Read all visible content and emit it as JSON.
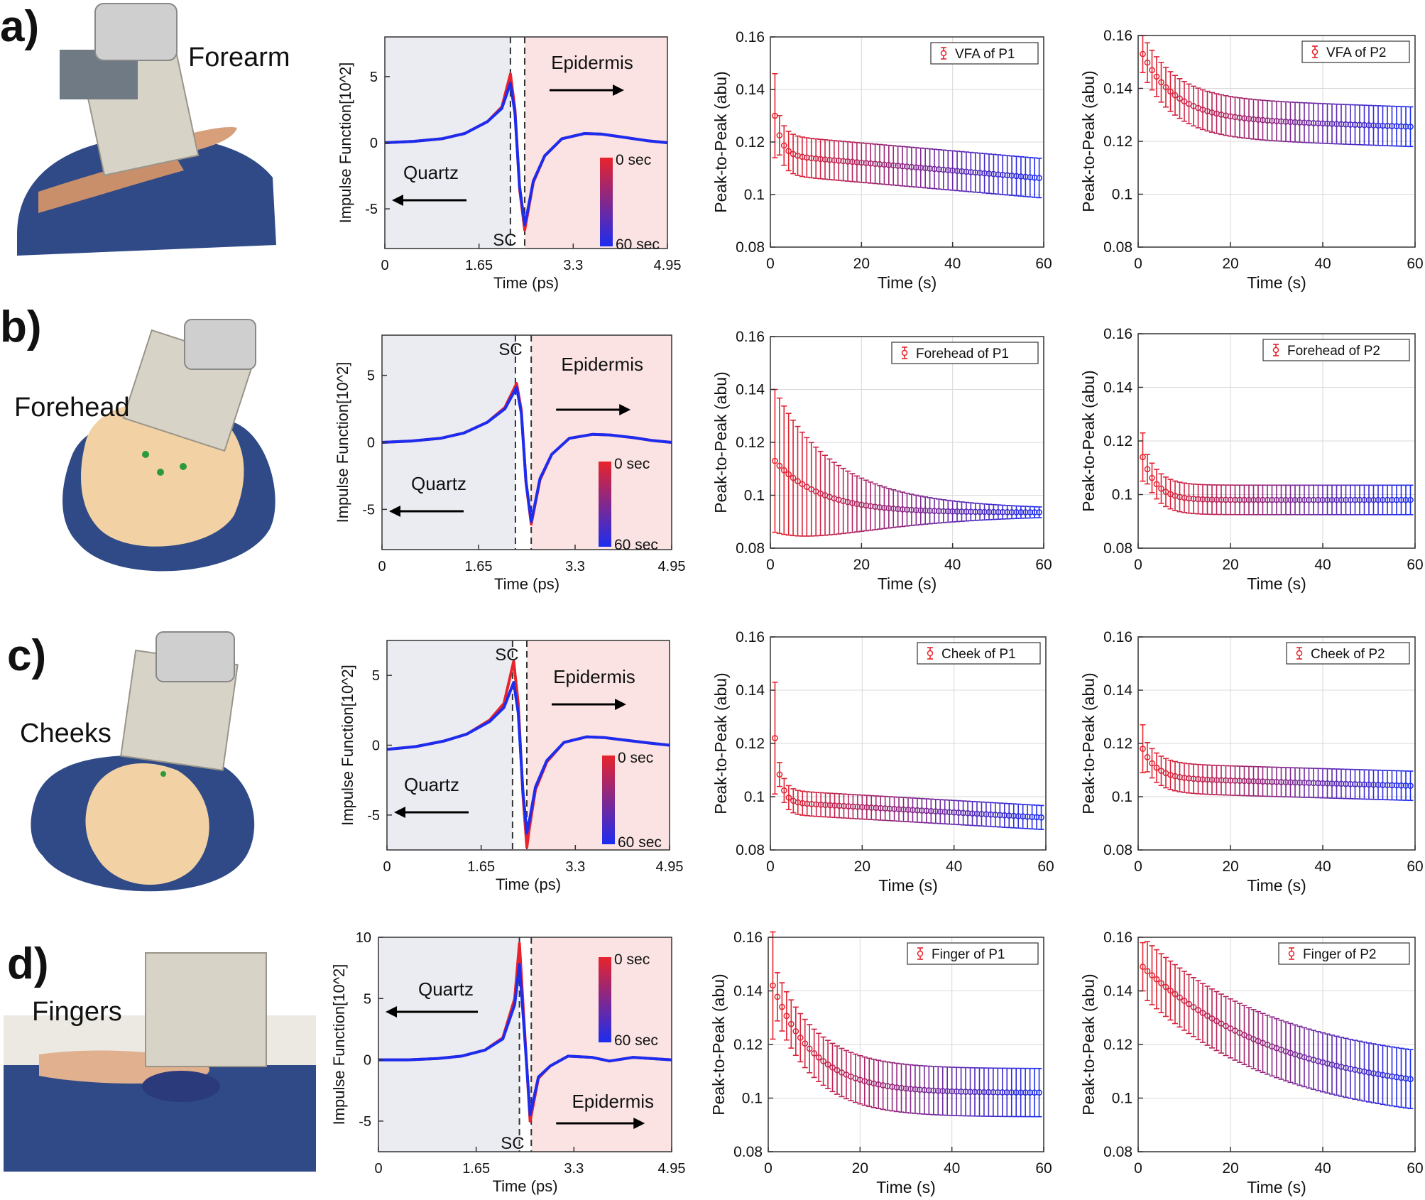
{
  "rows": [
    {
      "tag": "a)",
      "photo_label": "Forearm"
    },
    {
      "tag": "b)",
      "photo_label": "Forehead"
    },
    {
      "tag": "c)",
      "photo_label": "Cheeks"
    },
    {
      "tag": "d)",
      "photo_label": "Fingers"
    }
  ],
  "colors": {
    "quartz_bg": "#eaecf2",
    "epidermis_bg": "#fbe3e3",
    "trace_start": "#e8232b",
    "trace_end": "#1c2df0",
    "grid": "#d9d9d9"
  },
  "chart_data": [
    {
      "id": "a-impulse",
      "type": "line",
      "title": "",
      "xlabel": "Time (ps)",
      "ylabel": "Impulse Function[10^2]",
      "xticks": [
        "0",
        "1.65",
        "3.3",
        "4.95"
      ],
      "xlim": [
        0,
        4.95
      ],
      "yticks": [
        "-5",
        "0",
        "5"
      ],
      "ytick_values": [
        -5,
        0,
        5
      ],
      "ylim": [
        -8,
        8
      ],
      "sc_label": "SC",
      "sc_label_pos": "bottom",
      "sc_lines": [
        2.2,
        2.45
      ],
      "regions": {
        "quartz": "Quartz",
        "epidermis": "Epidermis"
      },
      "colorbar": {
        "top": "0 sec",
        "bottom": "60 sec"
      },
      "layout_variant": "a",
      "series": [
        {
          "name": "0 sec",
          "x": [
            0,
            0.5,
            1.0,
            1.4,
            1.8,
            2.05,
            2.2,
            2.28,
            2.36,
            2.45,
            2.5,
            2.6,
            2.8,
            3.1,
            3.5,
            3.8,
            4.2,
            4.6,
            4.95
          ],
          "y": [
            0,
            0.1,
            0.3,
            0.7,
            1.6,
            2.7,
            5.2,
            2.5,
            -3.5,
            -6.6,
            -5.4,
            -3.0,
            -1.0,
            0.3,
            0.7,
            0.65,
            0.4,
            0.15,
            0.0
          ]
        },
        {
          "name": "60 sec",
          "x": [
            0,
            0.5,
            1.0,
            1.4,
            1.8,
            2.05,
            2.2,
            2.28,
            2.36,
            2.45,
            2.5,
            2.6,
            2.8,
            3.1,
            3.5,
            3.8,
            4.2,
            4.6,
            4.95
          ],
          "y": [
            0,
            0.1,
            0.3,
            0.7,
            1.6,
            2.6,
            4.5,
            2.2,
            -3.3,
            -6.2,
            -5.2,
            -2.9,
            -1.0,
            0.3,
            0.7,
            0.65,
            0.4,
            0.15,
            0.0
          ]
        }
      ]
    },
    {
      "id": "a-p1",
      "type": "scatter",
      "title": "",
      "xlabel": "Time (s)",
      "ylabel": "Peak-to-Peak (abu)",
      "xlim": [
        0,
        60
      ],
      "xticks": [
        "0",
        "20",
        "40",
        "60"
      ],
      "xtick_values": [
        0,
        20,
        40,
        60
      ],
      "ylim": [
        0.08,
        0.16
      ],
      "yticks": [
        "0.08",
        "0.1",
        "0.12",
        "0.14",
        "0.16"
      ],
      "ytick_values": [
        0.08,
        0.1,
        0.12,
        0.14,
        0.16
      ],
      "legend": "VFA of P1",
      "legend_position": "top-right",
      "series": [
        {
          "name": "VFA of P1",
          "start": 0.13,
          "asym": 0.115,
          "drop_tau": 1.5,
          "slope": 0.00015,
          "err_start": 0.016,
          "err": 0.0075,
          "ystart_override": null
        }
      ]
    },
    {
      "id": "a-p2",
      "type": "scatter",
      "title": "",
      "xlabel": "Time (s)",
      "ylabel": "Peak-to-Peak (abu)",
      "xlim": [
        0,
        60
      ],
      "xticks": [
        "0",
        "20",
        "40",
        "60"
      ],
      "xtick_values": [
        0,
        20,
        40,
        60
      ],
      "ylim": [
        0.08,
        0.16
      ],
      "yticks": [
        "0.08",
        "0.1",
        "0.12",
        "0.14",
        "0.16"
      ],
      "ytick_values": [
        0.08,
        0.1,
        0.12,
        0.14,
        0.16
      ],
      "legend": "VFA of P2",
      "legend_position": "top-right",
      "series": [
        {
          "name": "VFA of P2",
          "start": 0.153,
          "asym": 0.129,
          "drop_tau": 7,
          "slope": 6e-05,
          "err_start": 0.007,
          "err": 0.0075
        }
      ]
    },
    {
      "id": "b-impulse",
      "type": "line",
      "title": "",
      "xlabel": "Time (ps)",
      "ylabel": "Impulse Function[10^2]",
      "xticks": [
        "0",
        "1.65",
        "3.3",
        "4.95"
      ],
      "xlim": [
        0,
        4.95
      ],
      "yticks": [
        "-5",
        "0",
        "5"
      ],
      "ytick_values": [
        -5,
        0,
        5
      ],
      "ylim": [
        -8,
        8
      ],
      "sc_label": "SC",
      "sc_label_pos": "top",
      "sc_lines": [
        2.28,
        2.55
      ],
      "regions": {
        "quartz": "Quartz",
        "epidermis": "Epidermis"
      },
      "colorbar": {
        "top": "0 sec",
        "bottom": "60 sec"
      },
      "layout_variant": "b",
      "series": [
        {
          "name": "0 sec",
          "x": [
            0,
            0.5,
            1.0,
            1.4,
            1.8,
            2.1,
            2.3,
            2.38,
            2.46,
            2.55,
            2.6,
            2.7,
            2.9,
            3.2,
            3.6,
            3.9,
            4.3,
            4.6,
            4.95
          ],
          "y": [
            0,
            0.1,
            0.3,
            0.7,
            1.5,
            2.6,
            4.4,
            2.4,
            -3.0,
            -6.1,
            -5.0,
            -2.8,
            -0.9,
            0.3,
            0.6,
            0.55,
            0.35,
            0.15,
            0.0
          ]
        },
        {
          "name": "60 sec",
          "x": [
            0,
            0.5,
            1.0,
            1.4,
            1.8,
            2.1,
            2.3,
            2.38,
            2.46,
            2.55,
            2.6,
            2.7,
            2.9,
            3.2,
            3.6,
            3.9,
            4.3,
            4.6,
            4.95
          ],
          "y": [
            0,
            0.1,
            0.3,
            0.7,
            1.5,
            2.5,
            4.1,
            2.2,
            -2.9,
            -5.9,
            -4.9,
            -2.7,
            -0.9,
            0.3,
            0.6,
            0.55,
            0.35,
            0.15,
            0.0
          ]
        }
      ]
    },
    {
      "id": "b-p1",
      "type": "scatter",
      "title": "",
      "xlabel": "Time (s)",
      "ylabel": "Peak-to-Peak (abu)",
      "xlim": [
        0,
        60
      ],
      "xticks": [
        "0",
        "20",
        "40",
        "60"
      ],
      "xtick_values": [
        0,
        20,
        40,
        60
      ],
      "ylim": [
        0.08,
        0.16
      ],
      "yticks": [
        "0.08",
        "0.1",
        "0.12",
        "0.14",
        "0.16"
      ],
      "ytick_values": [
        0.08,
        0.1,
        0.12,
        0.14,
        0.16
      ],
      "legend": "Forehead of P1",
      "legend_position": "top-right",
      "series": [
        {
          "name": "Forehead of P1",
          "start": 0.113,
          "asym": 0.0935,
          "drop_tau": 10,
          "slope": 0.0,
          "err_start": 0.027,
          "err_end": 0.001,
          "err_tau": 18
        }
      ]
    },
    {
      "id": "b-p2",
      "type": "scatter",
      "title": "",
      "xlabel": "Time (s)",
      "ylabel": "Peak-to-Peak (abu)",
      "xlim": [
        0,
        60
      ],
      "xticks": [
        "0",
        "20",
        "40",
        "60"
      ],
      "xtick_values": [
        0,
        20,
        40,
        60
      ],
      "ylim": [
        0.08,
        0.16
      ],
      "yticks": [
        "0.08",
        "0.1",
        "0.12",
        "0.14",
        "0.16"
      ],
      "ytick_values": [
        0.08,
        0.1,
        0.12,
        0.14,
        0.16
      ],
      "legend": "Forehead of P2",
      "legend_position": "top-right",
      "series": [
        {
          "name": "Forehead of P2",
          "start": 0.114,
          "asym": 0.098,
          "drop_tau": 3,
          "slope": 0.0,
          "err_start": 0.009,
          "err": 0.0055
        }
      ]
    },
    {
      "id": "c-impulse",
      "type": "line",
      "title": "",
      "xlabel": "Time (ps)",
      "ylabel": "Impulse Function[10^2]",
      "xticks": [
        "0",
        "1.65",
        "3.3",
        "4.95"
      ],
      "xlim": [
        0,
        4.95
      ],
      "yticks": [
        "-5",
        "0",
        "5"
      ],
      "ytick_values": [
        -5,
        0,
        5
      ],
      "ylim": [
        -7.5,
        7.5
      ],
      "sc_label": "SC",
      "sc_label_pos": "top",
      "sc_lines": [
        2.2,
        2.45
      ],
      "regions": {
        "quartz": "Quartz",
        "epidermis": "Epidermis"
      },
      "colorbar": {
        "top": "0 sec",
        "bottom": "60 sec"
      },
      "layout_variant": "c",
      "series": [
        {
          "name": "0 sec",
          "x": [
            0,
            0.5,
            1.0,
            1.4,
            1.8,
            2.05,
            2.22,
            2.3,
            2.38,
            2.45,
            2.5,
            2.6,
            2.8,
            3.1,
            3.5,
            3.8,
            4.2,
            4.6,
            4.95
          ],
          "y": [
            -0.3,
            -0.1,
            0.3,
            0.8,
            1.8,
            3.0,
            6.0,
            3.0,
            -3.5,
            -7.3,
            -5.8,
            -3.2,
            -1.2,
            0.2,
            0.6,
            0.55,
            0.35,
            0.15,
            0.0
          ]
        },
        {
          "name": "60 sec",
          "x": [
            0,
            0.5,
            1.0,
            1.4,
            1.8,
            2.05,
            2.22,
            2.3,
            2.38,
            2.45,
            2.5,
            2.6,
            2.8,
            3.1,
            3.5,
            3.8,
            4.2,
            4.6,
            4.95
          ],
          "y": [
            -0.3,
            -0.1,
            0.3,
            0.8,
            1.7,
            2.7,
            4.5,
            2.3,
            -3.2,
            -6.3,
            -5.3,
            -3.0,
            -1.1,
            0.2,
            0.6,
            0.55,
            0.35,
            0.15,
            0.0
          ]
        }
      ]
    },
    {
      "id": "c-p1",
      "type": "scatter",
      "title": "",
      "xlabel": "Time (s)",
      "ylabel": "Peak-to-Peak (abu)",
      "xlim": [
        0,
        60
      ],
      "xticks": [
        "0",
        "20",
        "40",
        "60"
      ],
      "xtick_values": [
        0,
        20,
        40,
        60
      ],
      "ylim": [
        0.08,
        0.16
      ],
      "yticks": [
        "0.08",
        "0.1",
        "0.12",
        "0.14",
        "0.16"
      ],
      "ytick_values": [
        0.08,
        0.1,
        0.12,
        0.14,
        0.16
      ],
      "legend": "Cheek of P1",
      "legend_position": "top-right",
      "series": [
        {
          "name": "Cheek of P1",
          "start": 0.122,
          "asym": 0.098,
          "drop_tau": 1.2,
          "slope": 0.0001,
          "err_start": 0.021,
          "err": 0.0045
        }
      ]
    },
    {
      "id": "c-p2",
      "type": "scatter",
      "title": "",
      "xlabel": "Time (s)",
      "ylabel": "Peak-to-Peak (abu)",
      "xlim": [
        0,
        60
      ],
      "xticks": [
        "0",
        "20",
        "40",
        "60"
      ],
      "xtick_values": [
        0,
        20,
        40,
        60
      ],
      "ylim": [
        0.08,
        0.16
      ],
      "yticks": [
        "0.08",
        "0.1",
        "0.12",
        "0.14",
        "0.16"
      ],
      "ytick_values": [
        0.08,
        0.1,
        0.12,
        0.14,
        0.16
      ],
      "legend": "Cheek of P2",
      "legend_position": "top-right",
      "series": [
        {
          "name": "Cheek of P2",
          "start": 0.118,
          "asym": 0.107,
          "drop_tau": 3,
          "slope": 5e-05,
          "err_start": 0.009,
          "err": 0.0055
        }
      ]
    },
    {
      "id": "d-impulse",
      "type": "line",
      "title": "",
      "xlabel": "Time (ps)",
      "ylabel": "Impulse Function[10^2]",
      "xticks": [
        "0",
        "1.65",
        "3.3",
        "4.95"
      ],
      "xlim": [
        0,
        4.95
      ],
      "yticks": [
        "-5",
        "0",
        "5",
        "10"
      ],
      "ytick_values": [
        -5,
        0,
        5,
        10
      ],
      "ylim": [
        -7.5,
        10
      ],
      "sc_label": "SC",
      "sc_label_pos": "bottom",
      "sc_lines": [
        2.38,
        2.58
      ],
      "regions": {
        "quartz": "Quartz",
        "epidermis": "Epidermis"
      },
      "colorbar": {
        "top": "0 sec",
        "bottom": "60 sec"
      },
      "layout_variant": "d",
      "series": [
        {
          "name": "0 sec",
          "x": [
            0,
            0.5,
            1.0,
            1.4,
            1.8,
            2.1,
            2.3,
            2.38,
            2.46,
            2.56,
            2.62,
            2.7,
            2.9,
            3.2,
            3.6,
            3.9,
            4.3,
            4.6,
            4.95
          ],
          "y": [
            0,
            0.0,
            0.1,
            0.3,
            0.8,
            1.8,
            5.0,
            9.5,
            3.0,
            -5.0,
            -3.5,
            -1.5,
            -0.5,
            0.3,
            0.2,
            -0.1,
            0.2,
            0.1,
            0.0
          ]
        },
        {
          "name": "60 sec",
          "x": [
            0,
            0.5,
            1.0,
            1.4,
            1.8,
            2.1,
            2.3,
            2.38,
            2.46,
            2.56,
            2.62,
            2.7,
            2.9,
            3.2,
            3.6,
            3.9,
            4.3,
            4.6,
            4.95
          ],
          "y": [
            0,
            0.0,
            0.1,
            0.3,
            0.8,
            1.7,
            4.5,
            7.8,
            2.5,
            -4.5,
            -3.2,
            -1.4,
            -0.5,
            0.3,
            0.2,
            -0.1,
            0.2,
            0.1,
            0.0
          ]
        }
      ]
    },
    {
      "id": "d-p1",
      "type": "scatter",
      "title": "",
      "xlabel": "Time (s)",
      "ylabel": "Peak-to-Peak (abu)",
      "xlim": [
        0,
        60
      ],
      "xticks": [
        "0",
        "20",
        "40",
        "60"
      ],
      "xtick_values": [
        0,
        20,
        40,
        60
      ],
      "ylim": [
        0.08,
        0.16
      ],
      "yticks": [
        "0.08",
        "0.1",
        "0.12",
        "0.14",
        "0.16"
      ],
      "ytick_values": [
        0.08,
        0.1,
        0.12,
        0.14,
        0.16
      ],
      "legend": "Finger of P1",
      "legend_position": "top-right",
      "series": [
        {
          "name": "Finger of P1",
          "start": 0.142,
          "asym": 0.102,
          "drop_tau": 9,
          "slope": 0.0,
          "err_start": 0.02,
          "err": 0.009
        }
      ]
    },
    {
      "id": "d-p2",
      "type": "scatter",
      "title": "",
      "xlabel": "Time (s)",
      "ylabel": "Peak-to-Peak (abu)",
      "xlim": [
        0,
        60
      ],
      "xticks": [
        "0",
        "20",
        "40",
        "60"
      ],
      "xtick_values": [
        0,
        20,
        40,
        60
      ],
      "ylim": [
        0.08,
        0.16
      ],
      "yticks": [
        "0.08",
        "0.1",
        "0.12",
        "0.14",
        "0.16"
      ],
      "ytick_values": [
        0.08,
        0.1,
        0.12,
        0.14,
        0.16
      ],
      "legend": "Finger of P2",
      "legend_position": "top-right",
      "series": [
        {
          "name": "Finger of P2",
          "start": 0.149,
          "asym": 0.1,
          "drop_tau": 30,
          "slope": 0.0,
          "err_start": 0.009,
          "err": 0.011
        }
      ]
    }
  ]
}
